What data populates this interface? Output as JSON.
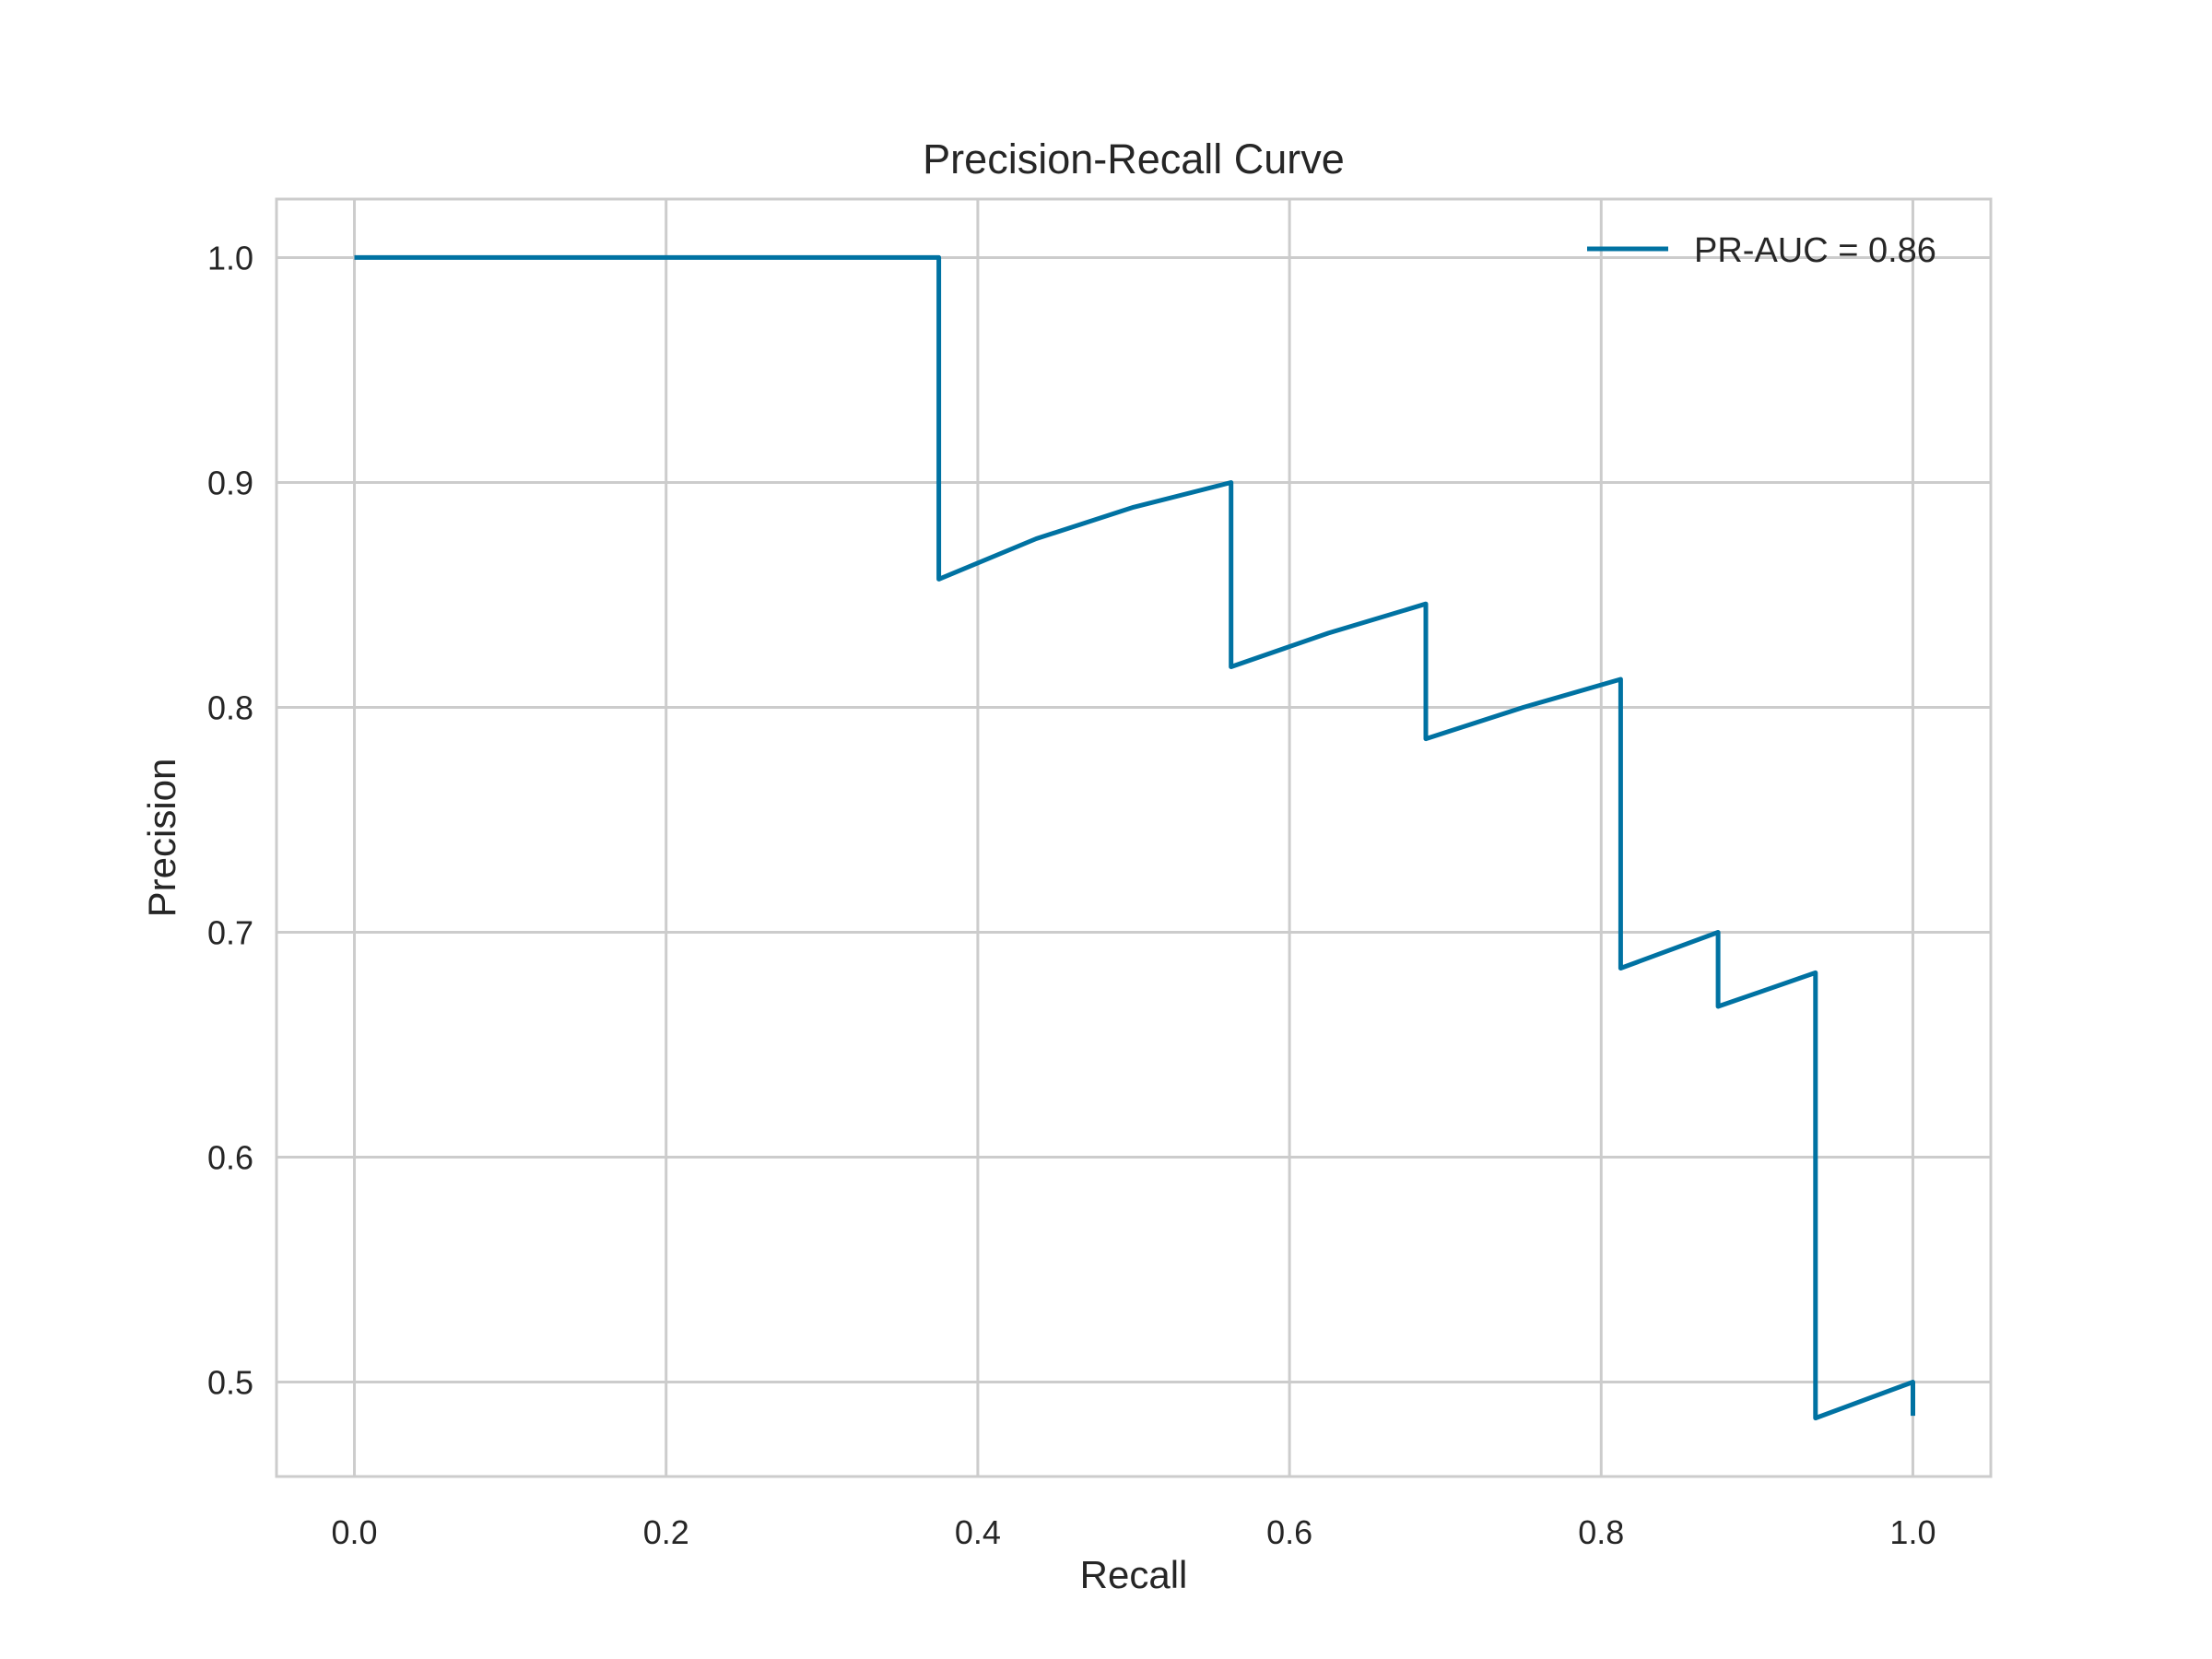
{
  "chart_data": {
    "type": "line",
    "title": "Precision-Recall Curve",
    "xlabel": "Recall",
    "ylabel": "Precision",
    "xlim": [
      -0.05,
      1.05
    ],
    "ylim": [
      0.458,
      1.026
    ],
    "xticks": [
      0.0,
      0.2,
      0.4,
      0.6,
      0.8,
      1.0
    ],
    "xtick_labels": [
      "0.0",
      "0.2",
      "0.4",
      "0.6",
      "0.8",
      "1.0"
    ],
    "yticks": [
      0.5,
      0.6,
      0.7,
      0.8,
      0.9,
      1.0
    ],
    "ytick_labels": [
      "0.5",
      "0.6",
      "0.7",
      "0.8",
      "0.9",
      "1.0"
    ],
    "grid": true,
    "legend_position": "top-right",
    "series": [
      {
        "name": "PR-AUC = 0.86",
        "color": "#0072a2",
        "x": [
          0.0,
          0.375,
          0.375,
          0.4375,
          0.5,
          0.5625,
          0.5625,
          0.625,
          0.6875,
          0.6875,
          0.75,
          0.8125,
          0.8125,
          0.875,
          0.875,
          0.9375,
          0.9375,
          1.0,
          1.0
        ],
        "y": [
          1.0,
          1.0,
          0.857,
          0.875,
          0.889,
          0.9,
          0.818,
          0.833,
          0.846,
          0.786,
          0.8,
          0.8125,
          0.684,
          0.7,
          0.667,
          0.682,
          0.484,
          0.5,
          0.485
        ]
      }
    ]
  }
}
